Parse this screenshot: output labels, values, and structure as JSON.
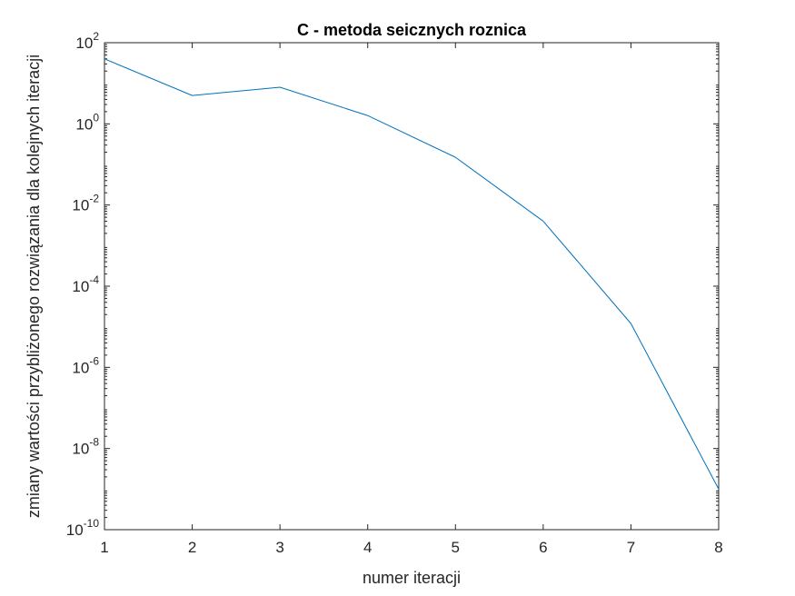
{
  "chart_data": {
    "type": "line",
    "title": "C - metoda seicznych roznica",
    "xlabel": "numer iteracji",
    "ylabel": "zmiany wartości przybliżonego rozwiązania dla kolejnych iteracji",
    "xlim": [
      1,
      8
    ],
    "ylim": [
      1e-10,
      100
    ],
    "yscale": "log",
    "grid": false,
    "x_ticks": [
      "1",
      "2",
      "3",
      "4",
      "5",
      "6",
      "7",
      "8"
    ],
    "y_ticks": [
      {
        "base": "10",
        "exp": "-10",
        "value": 1e-10
      },
      {
        "base": "10",
        "exp": "-8",
        "value": 1e-08
      },
      {
        "base": "10",
        "exp": "-6",
        "value": 1e-06
      },
      {
        "base": "10",
        "exp": "-4",
        "value": 0.0001
      },
      {
        "base": "10",
        "exp": "-2",
        "value": 0.01
      },
      {
        "base": "10",
        "exp": "0",
        "value": 1
      },
      {
        "base": "10",
        "exp": "2",
        "value": 100
      }
    ],
    "series": [
      {
        "color": "#0072BD",
        "x": [
          1,
          2,
          3,
          4,
          5,
          6,
          7,
          8
        ],
        "y": [
          40,
          5,
          8,
          1.6,
          0.15,
          0.004,
          1.2e-05,
          1e-09
        ]
      }
    ]
  }
}
